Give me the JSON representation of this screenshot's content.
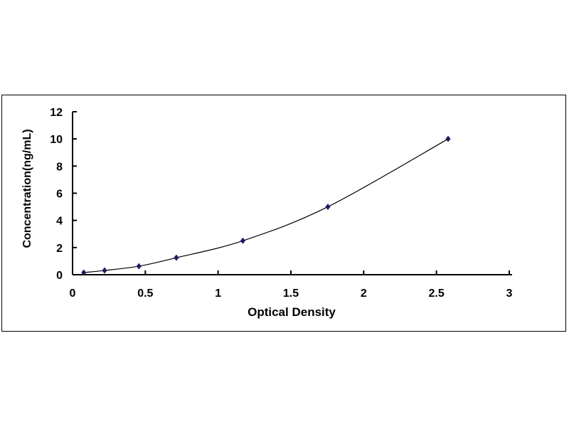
{
  "chart_data": {
    "type": "scatter",
    "title": "",
    "xlabel": "Optical Density",
    "ylabel": "Concentration(ng/mL)",
    "xlim": [
      0,
      3
    ],
    "ylim": [
      0,
      12
    ],
    "xticks": [
      "0",
      "0.5",
      "1",
      "1.5",
      "2",
      "2.5",
      "3"
    ],
    "yticks": [
      "0",
      "2",
      "4",
      "6",
      "8",
      "10",
      "12"
    ],
    "grid": false,
    "legend": "none",
    "trendline": "smooth curve",
    "marker": "diamond",
    "marker_color": "#1a1a5e",
    "line_color": "#000000",
    "series": [
      {
        "x": [
          0.077,
          0.22,
          0.456,
          0.713,
          1.17,
          1.754,
          2.58
        ],
        "y": [
          0.156,
          0.312,
          0.625,
          1.25,
          2.5,
          5,
          10
        ]
      }
    ]
  }
}
